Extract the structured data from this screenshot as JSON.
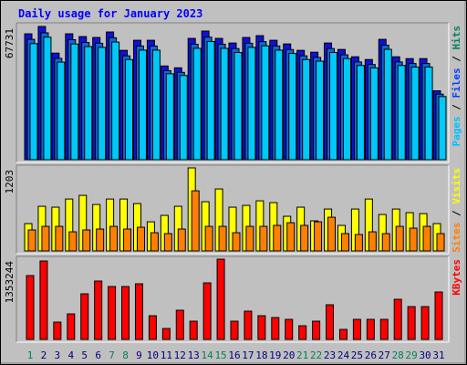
{
  "chart_data": [
    {
      "type": "bar",
      "title": "Daily usage for January 2023",
      "categories": [
        "1",
        "2",
        "3",
        "4",
        "5",
        "6",
        "7",
        "8",
        "9",
        "10",
        "11",
        "12",
        "13",
        "14",
        "15",
        "16",
        "17",
        "18",
        "19",
        "20",
        "21",
        "22",
        "23",
        "24",
        "25",
        "26",
        "27",
        "28",
        "29",
        "30",
        "31"
      ],
      "category_label_colors": [
        "#00805c",
        "#000080",
        "#000080",
        "#000080",
        "#000080",
        "#000080",
        "#00805c",
        "#00805c",
        "#000080",
        "#000080",
        "#000080",
        "#000080",
        "#000080",
        "#00805c",
        "#00805c",
        "#000080",
        "#000080",
        "#000080",
        "#000080",
        "#000080",
        "#00805c",
        "#00805c",
        "#000080",
        "#000080",
        "#000080",
        "#000080",
        "#000080",
        "#00805c",
        "#00805c",
        "#000080",
        "#000080"
      ],
      "ylim": [
        0,
        67731
      ],
      "yticks": [
        67731
      ],
      "legend_separator": " / ",
      "series": [
        {
          "name": "Hits",
          "color": "#1010d8",
          "legend_color": "#00805c",
          "values": [
            64000,
            67731,
            54180,
            64000,
            62590,
            62130,
            64930,
            55590,
            60720,
            60720,
            47640,
            46710,
            61660,
            65400,
            61660,
            59320,
            62130,
            63060,
            60720,
            58860,
            55590,
            54650,
            59320,
            56050,
            52320,
            50920,
            61190,
            52320,
            51380,
            51380,
            35030
          ]
        },
        {
          "name": "Files",
          "color": "#0a6ad8",
          "legend_color": "#0040ff",
          "values": [
            61200,
            64500,
            51500,
            61000,
            59600,
            59200,
            62000,
            52800,
            57800,
            57800,
            45300,
            44400,
            58700,
            62300,
            58700,
            56500,
            59200,
            60000,
            57800,
            56000,
            52800,
            52000,
            56500,
            53300,
            49700,
            48400,
            58200,
            49700,
            48900,
            48900,
            33300
          ]
        },
        {
          "name": "Pages",
          "color": "#00c8f8",
          "legend_color": "#00c0ff",
          "values": [
            59000,
            62300,
            49600,
            58800,
            57500,
            57100,
            59800,
            50900,
            55700,
            55700,
            43700,
            42800,
            56600,
            60100,
            56600,
            54500,
            57100,
            57900,
            55700,
            54000,
            50900,
            50100,
            54500,
            51400,
            47900,
            46700,
            56100,
            47900,
            47100,
            47100,
            32100
          ]
        }
      ]
    },
    {
      "type": "bar",
      "ylim": [
        0,
        1203
      ],
      "yticks": [
        1203
      ],
      "legend_separator": " / ",
      "series": [
        {
          "name": "Visits",
          "color": "#ffff00",
          "legend_color": "#ffff00",
          "values": [
            396,
            647,
            634,
            752,
            805,
            673,
            752,
            752,
            686,
            422,
            515,
            647,
            1203,
            713,
            898,
            634,
            660,
            726,
            700,
            502,
            634,
            436,
            607,
            370,
            607,
            752,
            528,
            607,
            554,
            541,
            396
          ]
        },
        {
          "name": "Sites",
          "color": "#ff8000",
          "legend_color": "#ff8000",
          "values": [
            304,
            356,
            356,
            277,
            304,
            317,
            356,
            317,
            343,
            264,
            251,
            317,
            871,
            356,
            356,
            264,
            356,
            356,
            370,
            409,
            370,
            422,
            488,
            251,
            238,
            277,
            251,
            356,
            330,
            356,
            251
          ]
        }
      ]
    },
    {
      "type": "bar",
      "ylim": [
        0,
        1353244
      ],
      "yticks": [
        1353244
      ],
      "series": [
        {
          "name": "KBytes",
          "color": "#ff0000",
          "legend_color": "#ff0000",
          "values": [
            1076460,
            1322510,
            292180,
            430580,
            768900,
            984190,
            891920,
            891920,
            938060,
            399830,
            184540,
            492100,
            307560,
            953440,
            1353244,
            307560,
            476720,
            399830,
            369070,
            338320,
            230670,
            307560,
            584360,
            169160,
            338320,
            338320,
            338320,
            676630,
            553610,
            553610,
            799660
          ]
        }
      ]
    }
  ]
}
